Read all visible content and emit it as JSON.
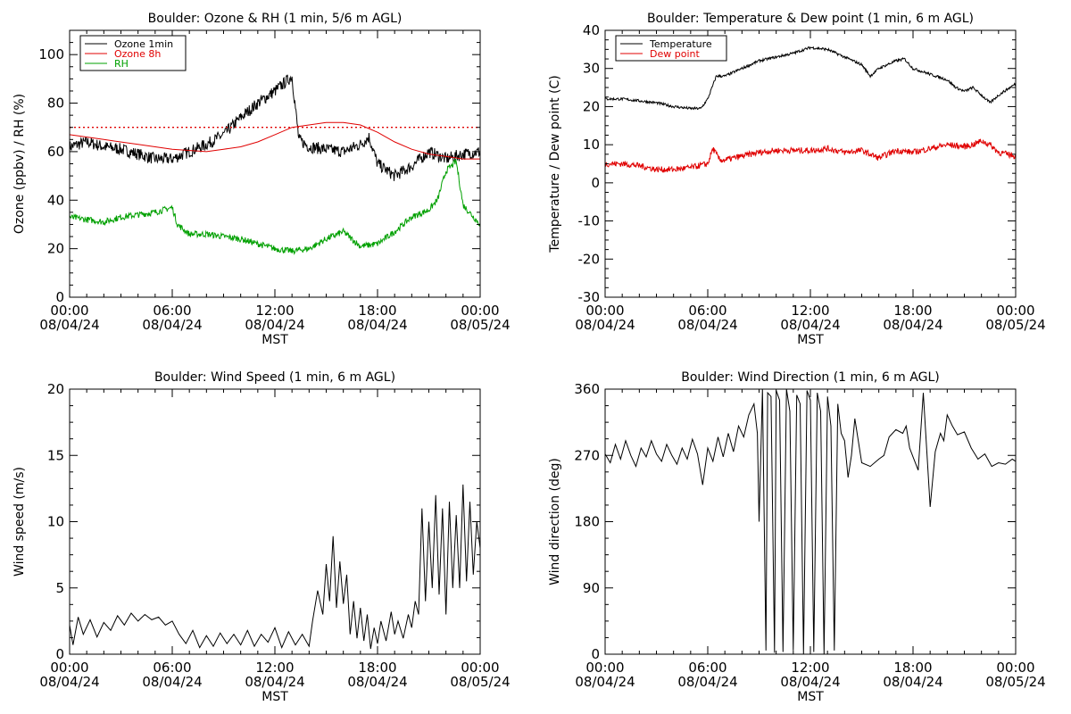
{
  "chart_data": [
    {
      "type": "line",
      "title": "Boulder: Ozone & RH (1 min, 5/6 m AGL)",
      "ylabel": "Ozone (ppbv) / RH (%)",
      "xlabel": "MST",
      "x_ticks": [
        {
          "hour": 0,
          "time": "00:00",
          "date": "08/04/24"
        },
        {
          "hour": 6,
          "time": "06:00",
          "date": "08/04/24"
        },
        {
          "hour": 12,
          "time": "12:00",
          "date": "08/04/24"
        },
        {
          "hour": 18,
          "time": "18:00",
          "date": "08/04/24"
        },
        {
          "hour": 24,
          "time": "00:00",
          "date": "08/05/24"
        }
      ],
      "xlim": [
        0,
        24
      ],
      "ylim": [
        0,
        110
      ],
      "y_ticks": [
        0,
        20,
        40,
        60,
        80,
        100
      ],
      "legend_position": "top-left",
      "reference_line": {
        "y": 70,
        "color": "#e00000",
        "style": "dotted"
      },
      "series": [
        {
          "name": "Ozone 1min",
          "color": "#000000",
          "noise": 2.5,
          "x": [
            0,
            1,
            2,
            3,
            4,
            5,
            6,
            7,
            8,
            9,
            10,
            11,
            12,
            13,
            13.4,
            14,
            15,
            16,
            17,
            17.5,
            18,
            19,
            20,
            21,
            22,
            23,
            24
          ],
          "y": [
            62,
            64,
            62,
            61,
            59,
            57,
            57,
            60,
            63,
            67,
            74,
            80,
            85,
            91,
            65,
            62,
            61,
            60,
            63,
            66,
            55,
            50,
            54,
            60,
            57,
            59,
            60
          ]
        },
        {
          "name": "Ozone 8h",
          "color": "#e00000",
          "noise": 0,
          "x": [
            0,
            2,
            4,
            6,
            8,
            9,
            10,
            11,
            12,
            13,
            14,
            15,
            16,
            17,
            18,
            19,
            20,
            21,
            22,
            23,
            24
          ],
          "y": [
            67,
            65,
            63,
            61,
            60,
            61,
            62,
            64,
            67,
            70,
            71,
            72,
            72,
            71,
            68,
            64,
            61,
            59,
            58,
            57,
            57
          ]
        },
        {
          "name": "RH",
          "color": "#00a000",
          "noise": 1.3,
          "x": [
            0,
            1,
            2,
            3,
            4,
            5,
            6,
            6.3,
            7,
            8,
            9,
            10,
            11,
            12,
            13,
            14,
            15,
            16,
            17,
            18,
            19,
            20,
            21,
            21.5,
            22,
            22.6,
            23,
            24
          ],
          "y": [
            33,
            32,
            31,
            33,
            34,
            35,
            37,
            30,
            26,
            26,
            25,
            24,
            22,
            20,
            19,
            20,
            24,
            27,
            21,
            22,
            27,
            33,
            36,
            40,
            52,
            56,
            38,
            30
          ]
        }
      ]
    },
    {
      "type": "line",
      "title": "Boulder: Temperature & Dew point (1 min, 6 m AGL)",
      "ylabel": "Temperature / Dew point (C)",
      "xlabel": "MST",
      "x_ticks": [
        {
          "hour": 0,
          "time": "00:00",
          "date": "08/04/24"
        },
        {
          "hour": 6,
          "time": "06:00",
          "date": "08/04/24"
        },
        {
          "hour": 12,
          "time": "12:00",
          "date": "08/04/24"
        },
        {
          "hour": 18,
          "time": "18:00",
          "date": "08/04/24"
        },
        {
          "hour": 24,
          "time": "00:00",
          "date": "08/05/24"
        }
      ],
      "xlim": [
        0,
        24
      ],
      "ylim": [
        -30,
        40
      ],
      "y_ticks": [
        -30,
        -20,
        -10,
        0,
        10,
        20,
        30,
        40
      ],
      "legend_position": "top-left",
      "series": [
        {
          "name": "Temperature",
          "color": "#000000",
          "noise": 0.35,
          "x": [
            0,
            1,
            2,
            3,
            4,
            5,
            5.6,
            6,
            6.5,
            7,
            8,
            9,
            10,
            11,
            12,
            13,
            14,
            15,
            15.5,
            16,
            17,
            17.5,
            18,
            19,
            20,
            20.5,
            21,
            21.5,
            22,
            22.5,
            23,
            24
          ],
          "y": [
            22,
            22,
            21.5,
            21,
            20,
            19.5,
            19.5,
            22,
            28,
            28,
            30,
            32,
            33,
            34,
            35.5,
            35,
            33,
            31,
            28,
            30,
            32,
            32.5,
            30,
            28.5,
            27,
            25,
            24,
            25,
            23,
            21,
            23,
            26
          ]
        },
        {
          "name": "Dew point",
          "color": "#e00000",
          "noise": 0.8,
          "x": [
            0,
            1,
            2,
            3,
            4,
            5,
            6,
            6.3,
            6.7,
            7,
            8,
            9,
            10,
            11,
            12,
            13,
            14,
            15,
            16,
            17,
            18,
            19,
            20,
            21,
            21.5,
            22,
            22.5,
            23,
            24
          ],
          "y": [
            5,
            5,
            4.5,
            3.5,
            3.5,
            4,
            5,
            9,
            6,
            6,
            7,
            8,
            8.5,
            8.5,
            8.5,
            9,
            8,
            8.5,
            6.5,
            8.5,
            8,
            9,
            10,
            9.5,
            10,
            11,
            10,
            8,
            7
          ]
        }
      ]
    },
    {
      "type": "line",
      "title": "Boulder: Wind Speed (1 min, 6 m AGL)",
      "ylabel": "Wind speed (m/s)",
      "xlabel": "MST",
      "x_ticks": [
        {
          "hour": 0,
          "time": "00:00",
          "date": "08/04/24"
        },
        {
          "hour": 6,
          "time": "06:00",
          "date": "08/04/24"
        },
        {
          "hour": 12,
          "time": "12:00",
          "date": "08/04/24"
        },
        {
          "hour": 18,
          "time": "18:00",
          "date": "08/04/24"
        },
        {
          "hour": 24,
          "time": "00:00",
          "date": "08/05/24"
        }
      ],
      "xlim": [
        0,
        24
      ],
      "ylim": [
        0,
        20
      ],
      "y_ticks": [
        0,
        5,
        10,
        15,
        20
      ],
      "series": [
        {
          "name": "Wind speed",
          "color": "#000000",
          "noise": 0,
          "x": [
            0,
            0.2,
            0.5,
            0.8,
            1.2,
            1.6,
            2,
            2.4,
            2.8,
            3.2,
            3.6,
            4,
            4.4,
            4.8,
            5.2,
            5.6,
            6,
            6.4,
            6.8,
            7.2,
            7.6,
            8,
            8.4,
            8.8,
            9.2,
            9.6,
            10,
            10.4,
            10.8,
            11.2,
            11.6,
            12,
            12.4,
            12.8,
            13.2,
            13.6,
            14,
            14.2,
            14.5,
            14.8,
            15,
            15.2,
            15.4,
            15.6,
            15.8,
            16,
            16.2,
            16.4,
            16.6,
            16.8,
            17,
            17.2,
            17.4,
            17.6,
            17.8,
            18,
            18.2,
            18.5,
            18.8,
            19,
            19.2,
            19.5,
            19.8,
            20,
            20.2,
            20.4,
            20.6,
            20.8,
            21,
            21.2,
            21.4,
            21.6,
            21.8,
            22,
            22.2,
            22.4,
            22.6,
            22.8,
            23,
            23.2,
            23.4,
            23.6,
            23.8,
            24
          ],
          "y": [
            2.2,
            0.7,
            2.8,
            1.5,
            2.6,
            1.3,
            2.4,
            1.8,
            2.9,
            2.2,
            3.1,
            2.5,
            3.0,
            2.6,
            2.8,
            2.2,
            2.5,
            1.5,
            0.8,
            1.8,
            0.5,
            1.4,
            0.6,
            1.6,
            0.8,
            1.5,
            0.7,
            1.8,
            0.6,
            1.5,
            0.9,
            2.0,
            0.5,
            1.7,
            0.7,
            1.5,
            0.6,
            2.5,
            4.8,
            3.0,
            6.8,
            4.0,
            8.9,
            3.5,
            7.0,
            3.8,
            6.0,
            1.5,
            4.0,
            1.2,
            3.5,
            1.0,
            3.0,
            0.4,
            2.0,
            0.8,
            2.5,
            1.0,
            3.2,
            1.5,
            2.5,
            1.2,
            3.0,
            2.0,
            4.0,
            3.0,
            11.0,
            4.0,
            10.0,
            5.0,
            12.0,
            4.5,
            11.0,
            3.0,
            11.5,
            5.0,
            10.5,
            5.0,
            12.8,
            5.5,
            11.5,
            6.0,
            10.0,
            8.0
          ]
        }
      ]
    },
    {
      "type": "line",
      "title": "Boulder: Wind Direction (1 min, 6 m AGL)",
      "ylabel": "Wind direction (deg)",
      "xlabel": "MST",
      "x_ticks": [
        {
          "hour": 0,
          "time": "00:00",
          "date": "08/04/24"
        },
        {
          "hour": 6,
          "time": "06:00",
          "date": "08/04/24"
        },
        {
          "hour": 12,
          "time": "12:00",
          "date": "08/04/24"
        },
        {
          "hour": 18,
          "time": "18:00",
          "date": "08/04/24"
        },
        {
          "hour": 24,
          "time": "00:00",
          "date": "08/05/24"
        }
      ],
      "xlim": [
        0,
        24
      ],
      "ylim": [
        0,
        360
      ],
      "y_ticks": [
        0,
        90,
        180,
        270,
        360
      ],
      "series": [
        {
          "name": "Wind direction",
          "color": "#000000",
          "noise": 0,
          "x": [
            0,
            0.3,
            0.6,
            0.9,
            1.2,
            1.5,
            1.8,
            2.1,
            2.4,
            2.7,
            3.0,
            3.3,
            3.6,
            3.9,
            4.2,
            4.5,
            4.8,
            5.1,
            5.4,
            5.7,
            6.0,
            6.3,
            6.6,
            6.9,
            7.2,
            7.5,
            7.8,
            8.1,
            8.4,
            8.7,
            8.9,
            9.0,
            9.2,
            9.4,
            9.5,
            9.7,
            9.9,
            10.0,
            10.2,
            10.4,
            10.6,
            10.8,
            11.0,
            11.2,
            11.4,
            11.6,
            11.8,
            12.0,
            12.2,
            12.4,
            12.6,
            12.8,
            13.0,
            13.2,
            13.4,
            13.6,
            13.8,
            14.0,
            14.2,
            14.4,
            14.6,
            15.0,
            15.5,
            16.0,
            16.3,
            16.6,
            17.0,
            17.4,
            17.6,
            17.8,
            18.0,
            18.3,
            18.6,
            19.0,
            19.3,
            19.6,
            19.8,
            20.0,
            20.3,
            20.6,
            21.0,
            21.4,
            21.8,
            22.2,
            22.6,
            23.0,
            23.4,
            23.8,
            24.0
          ],
          "y": [
            272,
            260,
            285,
            265,
            290,
            270,
            255,
            280,
            268,
            290,
            272,
            262,
            285,
            270,
            258,
            280,
            265,
            292,
            272,
            230,
            280,
            262,
            295,
            268,
            300,
            275,
            310,
            295,
            325,
            340,
            300,
            180,
            360,
            5,
            355,
            350,
            2,
            358,
            345,
            3,
            360,
            330,
            5,
            352,
            340,
            0,
            358,
            345,
            3,
            355,
            330,
            0,
            350,
            310,
            5,
            340,
            300,
            290,
            240,
            270,
            320,
            260,
            255,
            265,
            270,
            295,
            305,
            300,
            310,
            280,
            268,
            250,
            355,
            200,
            275,
            300,
            290,
            325,
            310,
            298,
            302,
            280,
            265,
            272,
            255,
            260,
            258,
            265,
            262
          ]
        }
      ]
    }
  ]
}
